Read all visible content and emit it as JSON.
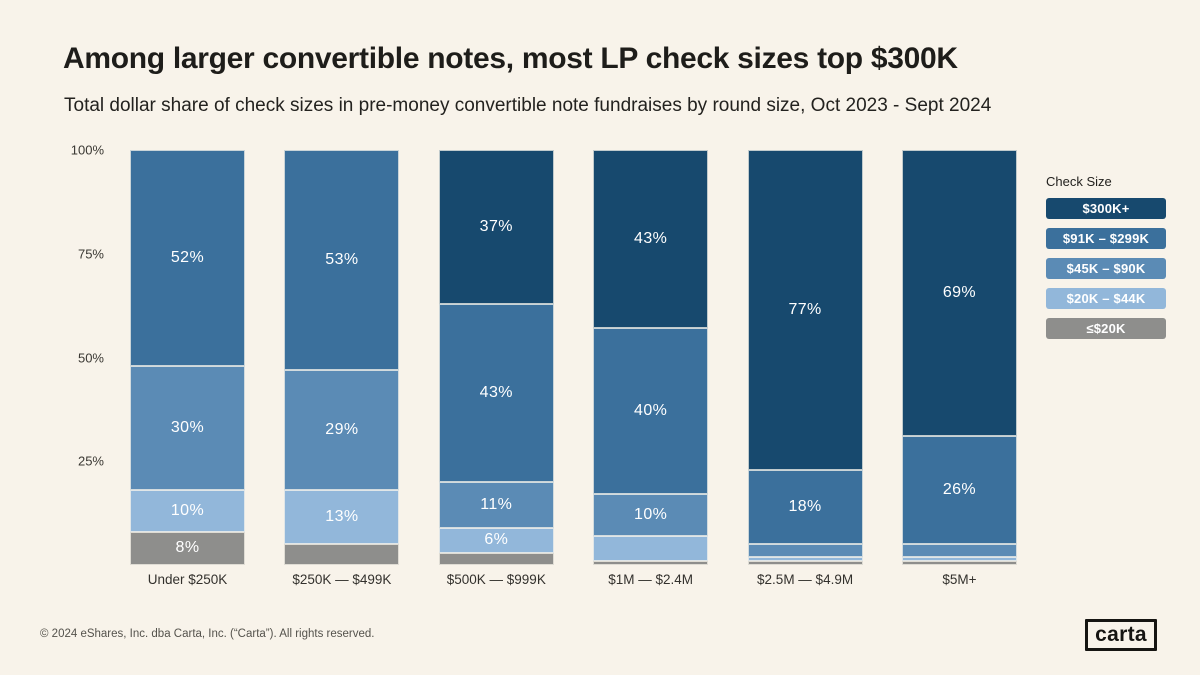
{
  "title": "Among larger convertible notes, most LP check sizes top $300K",
  "subtitle": "Total dollar share of check sizes in pre-money convertible note fundraises by round size, Oct 2023 - Sept 2024",
  "legend": {
    "title": "Check Size",
    "items": [
      {
        "label": "$300K+",
        "color": "#17496e"
      },
      {
        "label": "$91K – $299K",
        "color": "#3b709c"
      },
      {
        "label": "$45K – $90K",
        "color": "#5b8bb5"
      },
      {
        "label": "$20K – $44K",
        "color": "#92b7da"
      },
      {
        "label": "≤$20K",
        "color": "#8e8e8c"
      }
    ]
  },
  "colors": {
    "background": "#f8f3ea",
    "title_text": "#1e1d1a",
    "axis_text": "#3a3833",
    "segment_label_text": "#ffffff"
  },
  "chart_data": {
    "type": "bar",
    "subtype": "stacked-100-percent-vertical",
    "title": "Among larger convertible notes, most LP check sizes top $300K",
    "subtitle": "Total dollar share of check sizes in pre-money convertible note fundraises by round size, Oct 2023 - Sept 2024",
    "categories": [
      "Under $250K",
      "$250K — $499K",
      "$500K — $999K",
      "$1M — $2.4M",
      "$2.5M — $4.9M",
      "$5M+"
    ],
    "series": [
      {
        "name": "$300K+",
        "color": "#17496e",
        "values": [
          0,
          0,
          37,
          43,
          77,
          69
        ],
        "labels": [
          "",
          "",
          "37%",
          "43%",
          "77%",
          "69%"
        ]
      },
      {
        "name": "$91K – $299K",
        "color": "#3b709c",
        "values": [
          52,
          53,
          43,
          40,
          18,
          26
        ],
        "labels": [
          "52%",
          "53%",
          "43%",
          "40%",
          "18%",
          "26%"
        ]
      },
      {
        "name": "$45K – $90K",
        "color": "#5b8bb5",
        "values": [
          30,
          29,
          11,
          10,
          3,
          3
        ],
        "labels": [
          "30%",
          "29%",
          "11%",
          "10%",
          "",
          ""
        ]
      },
      {
        "name": "$20K – $44K",
        "color": "#92b7da",
        "values": [
          10,
          13,
          6,
          6,
          1,
          1
        ],
        "labels": [
          "10%",
          "13%",
          "6%",
          "",
          "",
          ""
        ]
      },
      {
        "name": "≤$20K",
        "color": "#8e8e8c",
        "values": [
          8,
          5,
          3,
          1,
          1,
          1
        ],
        "labels": [
          "8%",
          "",
          "",
          "",
          "",
          ""
        ]
      }
    ],
    "xlabel": "",
    "ylabel": "",
    "y_ticks": [
      "100%",
      "75%",
      "50%",
      "25%"
    ],
    "ylim": [
      0,
      100
    ],
    "grid": false,
    "legend_position": "right",
    "stack_order_top_to_bottom": [
      "$300K+",
      "$91K – $299K",
      "$45K – $90K",
      "$20K – $44K",
      "≤$20K"
    ]
  },
  "footer": {
    "copyright": "© 2024 eShares, Inc. dba Carta, Inc. (“Carta”). All rights reserved.",
    "logo_text": "carta"
  }
}
